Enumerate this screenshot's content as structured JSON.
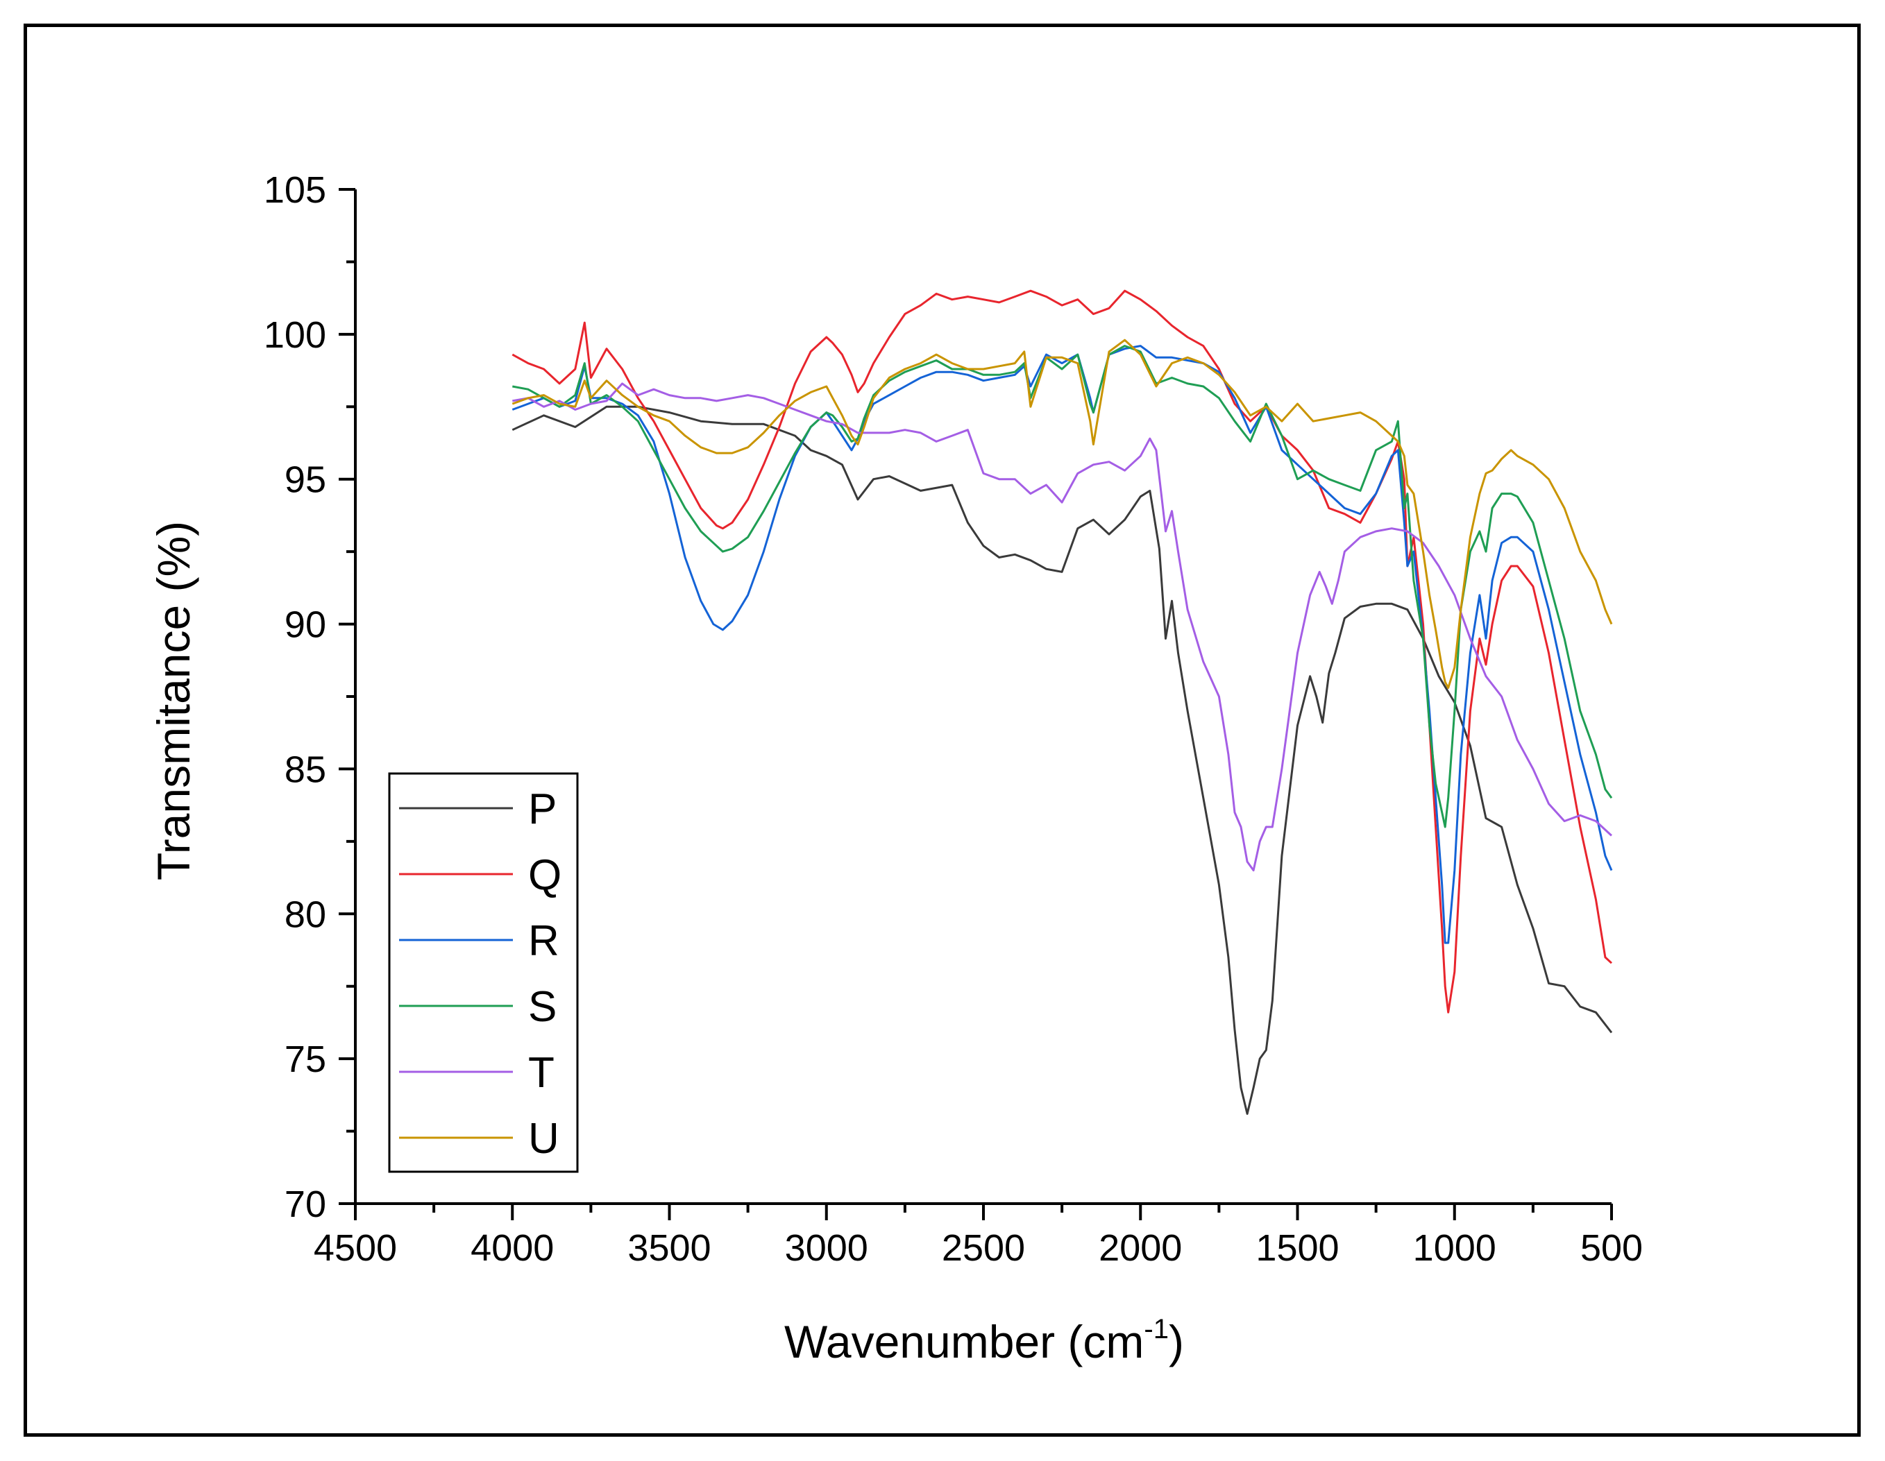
{
  "chart_data": {
    "type": "line",
    "title": "",
    "xlabel": "Wavenumber (cm",
    "xlabel_sup": "-1",
    "xlabel_close": ")",
    "ylabel": "Transmitance (%)",
    "xlim": [
      4500,
      500
    ],
    "ylim": [
      70,
      105
    ],
    "xticks": [
      4500,
      4000,
      3500,
      3000,
      2500,
      2000,
      1500,
      1000,
      500
    ],
    "yticks": [
      70,
      75,
      80,
      85,
      90,
      95,
      100,
      105
    ],
    "legend_position": "bottom-left",
    "series": [
      {
        "name": "P",
        "color": "#3a3a3a",
        "x": [
          4000,
          3900,
          3800,
          3700,
          3600,
          3500,
          3400,
          3300,
          3200,
          3100,
          3050,
          3000,
          2950,
          2900,
          2850,
          2800,
          2700,
          2600,
          2550,
          2500,
          2450,
          2400,
          2350,
          2300,
          2250,
          2200,
          2150,
          2100,
          2050,
          2000,
          1970,
          1940,
          1920,
          1900,
          1880,
          1850,
          1800,
          1750,
          1720,
          1700,
          1680,
          1660,
          1640,
          1620,
          1600,
          1580,
          1550,
          1500,
          1460,
          1440,
          1420,
          1400,
          1380,
          1350,
          1300,
          1250,
          1200,
          1150,
          1100,
          1050,
          1000,
          950,
          900,
          850,
          800,
          750,
          700,
          650,
          600,
          550,
          500
        ],
        "values": [
          96.7,
          97.2,
          96.8,
          97.5,
          97.5,
          97.3,
          97.0,
          96.9,
          96.9,
          96.5,
          96.0,
          95.8,
          95.5,
          94.3,
          95.0,
          95.1,
          94.6,
          94.8,
          93.5,
          92.7,
          92.3,
          92.4,
          92.2,
          91.9,
          91.8,
          93.3,
          93.6,
          93.1,
          93.6,
          94.4,
          94.6,
          92.6,
          89.5,
          90.8,
          89.0,
          87.0,
          84.0,
          81.0,
          78.5,
          76.0,
          74.0,
          73.1,
          74.0,
          75.0,
          75.3,
          77.0,
          82.0,
          86.5,
          88.2,
          87.5,
          86.6,
          88.3,
          89.0,
          90.2,
          90.6,
          90.7,
          90.7,
          90.5,
          89.5,
          88.2,
          87.3,
          85.8,
          83.3,
          83.0,
          81.0,
          79.5,
          77.6,
          77.5,
          76.8,
          76.6,
          75.9
        ]
      },
      {
        "name": "Q",
        "color": "#e8252d",
        "x": [
          4000,
          3950,
          3900,
          3850,
          3800,
          3770,
          3750,
          3700,
          3650,
          3600,
          3550,
          3500,
          3450,
          3400,
          3350,
          3330,
          3300,
          3250,
          3200,
          3150,
          3100,
          3050,
          3000,
          2980,
          2950,
          2920,
          2900,
          2880,
          2850,
          2800,
          2750,
          2700,
          2650,
          2600,
          2550,
          2500,
          2450,
          2400,
          2350,
          2300,
          2250,
          2200,
          2150,
          2100,
          2050,
          2000,
          1950,
          1900,
          1850,
          1800,
          1750,
          1700,
          1650,
          1600,
          1550,
          1500,
          1450,
          1400,
          1350,
          1300,
          1250,
          1200,
          1180,
          1160,
          1150,
          1130,
          1100,
          1080,
          1060,
          1040,
          1030,
          1020,
          1000,
          980,
          950,
          920,
          900,
          880,
          850,
          820,
          800,
          750,
          700,
          650,
          600,
          550,
          520,
          500
        ],
        "values": [
          99.3,
          99.0,
          98.8,
          98.3,
          98.8,
          100.4,
          98.5,
          99.5,
          98.8,
          97.8,
          97.0,
          96.0,
          95.0,
          94.0,
          93.4,
          93.3,
          93.5,
          94.3,
          95.5,
          96.8,
          98.3,
          99.4,
          99.9,
          99.7,
          99.3,
          98.6,
          98.0,
          98.3,
          99.0,
          99.9,
          100.7,
          101.0,
          101.4,
          101.2,
          101.3,
          101.2,
          101.1,
          101.3,
          101.5,
          101.3,
          101.0,
          101.2,
          100.7,
          100.9,
          101.5,
          101.2,
          100.8,
          100.3,
          99.9,
          99.6,
          98.8,
          97.6,
          97.0,
          97.5,
          96.5,
          96.0,
          95.3,
          94.0,
          93.8,
          93.5,
          94.5,
          95.7,
          96.3,
          95.0,
          92.0,
          93.0,
          90.0,
          86.5,
          83.0,
          79.5,
          77.5,
          76.6,
          78.0,
          82.0,
          87.0,
          89.5,
          88.6,
          90.0,
          91.5,
          92.0,
          92.0,
          91.3,
          89.0,
          86.0,
          83.0,
          80.5,
          78.5,
          78.3
        ]
      },
      {
        "name": "R",
        "color": "#1463d6",
        "x": [
          4000,
          3950,
          3900,
          3850,
          3800,
          3770,
          3750,
          3700,
          3650,
          3600,
          3550,
          3500,
          3450,
          3400,
          3360,
          3330,
          3300,
          3250,
          3200,
          3150,
          3100,
          3050,
          3000,
          2980,
          2950,
          2920,
          2900,
          2880,
          2850,
          2800,
          2750,
          2700,
          2650,
          2600,
          2550,
          2500,
          2450,
          2400,
          2370,
          2350,
          2300,
          2250,
          2200,
          2160,
          2150,
          2100,
          2050,
          2000,
          1950,
          1900,
          1850,
          1800,
          1750,
          1700,
          1650,
          1600,
          1550,
          1500,
          1450,
          1400,
          1350,
          1300,
          1250,
          1200,
          1180,
          1160,
          1150,
          1130,
          1100,
          1080,
          1060,
          1040,
          1030,
          1020,
          1000,
          980,
          950,
          920,
          900,
          880,
          850,
          820,
          800,
          750,
          700,
          650,
          600,
          550,
          520,
          500
        ],
        "values": [
          97.4,
          97.6,
          97.8,
          97.5,
          97.7,
          98.9,
          97.8,
          97.8,
          97.6,
          97.2,
          96.3,
          94.5,
          92.3,
          90.8,
          90.0,
          89.8,
          90.1,
          91.0,
          92.5,
          94.3,
          95.8,
          96.8,
          97.3,
          97.0,
          96.5,
          96.0,
          96.4,
          97.0,
          97.6,
          97.9,
          98.2,
          98.5,
          98.7,
          98.7,
          98.6,
          98.4,
          98.5,
          98.6,
          98.9,
          98.2,
          99.3,
          99.0,
          99.3,
          97.8,
          97.3,
          99.3,
          99.5,
          99.6,
          99.2,
          99.2,
          99.1,
          99.0,
          98.7,
          97.8,
          96.6,
          97.5,
          96.0,
          95.5,
          95.0,
          94.5,
          94.0,
          93.8,
          94.5,
          95.8,
          96.0,
          93.5,
          92.0,
          92.5,
          89.5,
          87.0,
          84.0,
          81.0,
          79.0,
          79.0,
          81.5,
          85.5,
          89.0,
          91.0,
          89.5,
          91.5,
          92.8,
          93.0,
          93.0,
          92.5,
          90.5,
          88.0,
          85.5,
          83.5,
          82.0,
          81.5
        ]
      },
      {
        "name": "S",
        "color": "#1f9e54",
        "x": [
          4000,
          3950,
          3900,
          3850,
          3800,
          3770,
          3750,
          3700,
          3650,
          3600,
          3550,
          3500,
          3450,
          3400,
          3350,
          3330,
          3300,
          3250,
          3200,
          3150,
          3100,
          3050,
          3000,
          2980,
          2950,
          2920,
          2900,
          2880,
          2850,
          2800,
          2750,
          2700,
          2650,
          2600,
          2550,
          2500,
          2450,
          2400,
          2370,
          2350,
          2300,
          2250,
          2200,
          2160,
          2150,
          2100,
          2050,
          2000,
          1950,
          1900,
          1850,
          1800,
          1750,
          1700,
          1650,
          1600,
          1550,
          1500,
          1450,
          1400,
          1350,
          1300,
          1250,
          1200,
          1180,
          1160,
          1150,
          1130,
          1100,
          1080,
          1060,
          1040,
          1030,
          1020,
          1000,
          980,
          950,
          920,
          900,
          880,
          850,
          820,
          800,
          750,
          700,
          650,
          600,
          550,
          520,
          500
        ],
        "values": [
          98.2,
          98.1,
          97.8,
          97.5,
          97.9,
          99.0,
          97.6,
          97.9,
          97.5,
          97.0,
          96.0,
          95.0,
          94.0,
          93.2,
          92.7,
          92.5,
          92.6,
          93.0,
          93.9,
          94.9,
          95.9,
          96.8,
          97.3,
          97.2,
          96.8,
          96.3,
          96.4,
          97.1,
          97.9,
          98.4,
          98.7,
          98.9,
          99.1,
          98.8,
          98.8,
          98.6,
          98.6,
          98.7,
          99.0,
          97.8,
          99.2,
          98.8,
          99.3,
          97.6,
          97.3,
          99.3,
          99.6,
          99.4,
          98.3,
          98.5,
          98.3,
          98.2,
          97.8,
          97.0,
          96.3,
          97.6,
          96.5,
          95.0,
          95.3,
          95.0,
          94.8,
          94.6,
          96.0,
          96.3,
          97.0,
          94.0,
          94.5,
          91.5,
          89.5,
          86.5,
          84.5,
          83.5,
          83.0,
          84.0,
          87.0,
          90.5,
          92.5,
          93.2,
          92.5,
          94.0,
          94.5,
          94.5,
          94.4,
          93.5,
          91.5,
          89.5,
          87.0,
          85.5,
          84.3,
          84.0
        ]
      },
      {
        "name": "T",
        "color": "#a45ee5",
        "x": [
          4000,
          3950,
          3900,
          3850,
          3800,
          3750,
          3700,
          3650,
          3600,
          3550,
          3500,
          3450,
          3400,
          3350,
          3300,
          3250,
          3200,
          3150,
          3100,
          3050,
          3000,
          2950,
          2900,
          2850,
          2800,
          2750,
          2700,
          2650,
          2600,
          2550,
          2500,
          2450,
          2400,
          2350,
          2300,
          2250,
          2200,
          2150,
          2100,
          2050,
          2000,
          1970,
          1950,
          1920,
          1900,
          1880,
          1850,
          1800,
          1750,
          1720,
          1700,
          1680,
          1660,
          1640,
          1620,
          1600,
          1580,
          1550,
          1500,
          1460,
          1430,
          1410,
          1390,
          1370,
          1350,
          1300,
          1250,
          1200,
          1150,
          1100,
          1050,
          1000,
          950,
          900,
          850,
          800,
          750,
          700,
          650,
          600,
          550,
          520,
          500
        ],
        "values": [
          97.7,
          97.8,
          97.5,
          97.7,
          97.4,
          97.6,
          97.7,
          98.3,
          97.9,
          98.1,
          97.9,
          97.8,
          97.8,
          97.7,
          97.8,
          97.9,
          97.8,
          97.6,
          97.4,
          97.2,
          97.0,
          96.9,
          96.6,
          96.6,
          96.6,
          96.7,
          96.6,
          96.3,
          96.5,
          96.7,
          95.2,
          95.0,
          95.0,
          94.5,
          94.8,
          94.2,
          95.2,
          95.5,
          95.6,
          95.3,
          95.8,
          96.4,
          96.0,
          93.2,
          93.9,
          92.5,
          90.5,
          88.7,
          87.5,
          85.5,
          83.5,
          83.0,
          81.8,
          81.5,
          82.5,
          83.0,
          83.0,
          85.0,
          89.0,
          91.0,
          91.8,
          91.3,
          90.7,
          91.5,
          92.5,
          93.0,
          93.2,
          93.3,
          93.2,
          92.8,
          92.0,
          91.0,
          89.5,
          88.2,
          87.5,
          86.0,
          85.0,
          83.8,
          83.2,
          83.4,
          83.2,
          82.9,
          82.7
        ]
      },
      {
        "name": "U",
        "color": "#c99400",
        "x": [
          4000,
          3950,
          3900,
          3850,
          3800,
          3770,
          3750,
          3700,
          3650,
          3600,
          3550,
          3500,
          3450,
          3400,
          3350,
          3300,
          3250,
          3200,
          3150,
          3100,
          3050,
          3000,
          2980,
          2950,
          2920,
          2900,
          2880,
          2850,
          2800,
          2750,
          2700,
          2650,
          2600,
          2550,
          2500,
          2450,
          2400,
          2370,
          2350,
          2300,
          2250,
          2200,
          2160,
          2150,
          2100,
          2050,
          2000,
          1950,
          1900,
          1850,
          1800,
          1750,
          1700,
          1650,
          1600,
          1550,
          1500,
          1450,
          1400,
          1350,
          1300,
          1250,
          1200,
          1180,
          1160,
          1150,
          1130,
          1100,
          1080,
          1060,
          1040,
          1030,
          1020,
          1000,
          980,
          950,
          920,
          900,
          880,
          850,
          820,
          800,
          750,
          700,
          650,
          600,
          550,
          520,
          500
        ],
        "values": [
          97.6,
          97.8,
          97.9,
          97.6,
          97.5,
          98.4,
          97.8,
          98.4,
          97.9,
          97.5,
          97.2,
          97.0,
          96.5,
          96.1,
          95.9,
          95.9,
          96.1,
          96.6,
          97.2,
          97.7,
          98.0,
          98.2,
          97.8,
          97.2,
          96.5,
          96.2,
          96.8,
          97.8,
          98.5,
          98.8,
          99.0,
          99.3,
          99.0,
          98.8,
          98.8,
          98.9,
          99.0,
          99.4,
          97.5,
          99.2,
          99.2,
          99.0,
          97.0,
          96.2,
          99.4,
          99.8,
          99.3,
          98.2,
          99.0,
          99.2,
          99.0,
          98.6,
          98.0,
          97.2,
          97.5,
          97.0,
          97.6,
          97.0,
          97.1,
          97.2,
          97.3,
          97.0,
          96.5,
          96.3,
          95.8,
          94.8,
          94.5,
          92.5,
          91.0,
          89.8,
          88.5,
          88.0,
          87.8,
          88.5,
          90.5,
          93.0,
          94.5,
          95.2,
          95.3,
          95.7,
          96.0,
          95.8,
          95.5,
          95.0,
          94.0,
          92.5,
          91.5,
          90.5,
          90.0
        ]
      }
    ]
  }
}
